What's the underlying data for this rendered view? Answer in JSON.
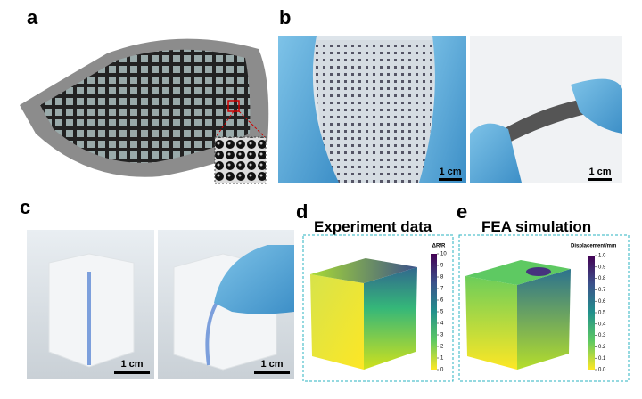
{
  "panels": {
    "a": {
      "label": "a"
    },
    "b": {
      "label": "b",
      "scale_bars": [
        "1 cm",
        "1 cm"
      ]
    },
    "c": {
      "label": "c",
      "scale_bars": [
        "1 cm",
        "1 cm"
      ]
    },
    "d": {
      "label": "d",
      "title": "Experiment data",
      "colorbar": {
        "label": "ΔR/R",
        "lim": [
          0,
          10
        ],
        "ticks": [
          0,
          1,
          2,
          3,
          4,
          5,
          6,
          7,
          8,
          9,
          10
        ]
      }
    },
    "e": {
      "label": "e",
      "title": "FEA simulation",
      "colorbar": {
        "label": "Displacement/mm",
        "lim": [
          0,
          1
        ],
        "ticks": [
          {
            "value": 0,
            "label": "0.0"
          },
          0.1,
          0.2,
          0.3,
          0.4,
          0.5,
          0.6,
          0.7,
          0.8,
          0.9,
          {
            "value": 1,
            "label": "1.0"
          }
        ]
      }
    }
  }
}
